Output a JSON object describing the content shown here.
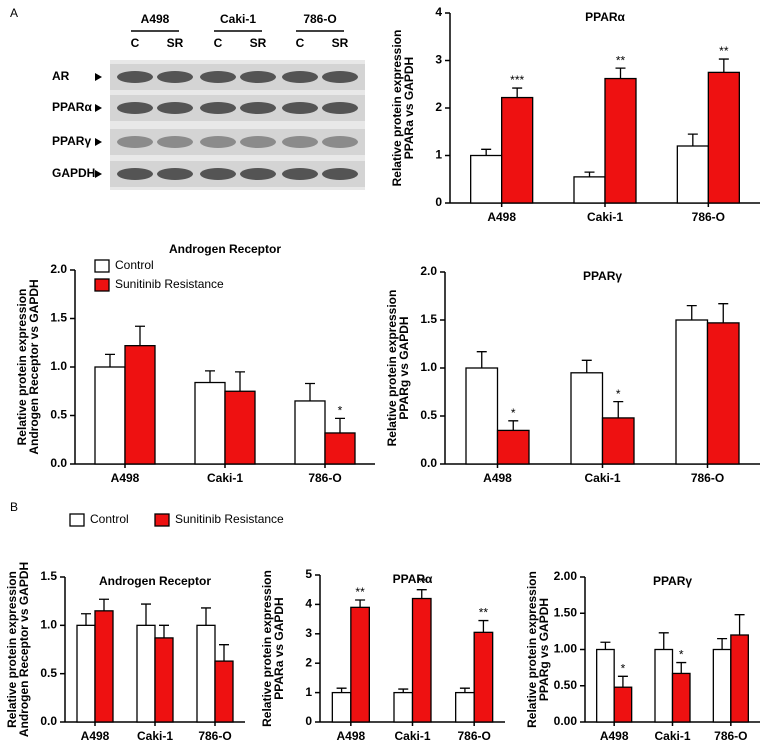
{
  "panels": [
    "A",
    "B"
  ],
  "blot": {
    "cell_lines": [
      "A498",
      "Caki-1",
      "786-O"
    ],
    "lanes": [
      "C",
      "SR",
      "C",
      "SR",
      "C",
      "SR"
    ],
    "proteins": [
      "AR",
      "PPARα",
      "PPARγ",
      "GAPDH"
    ]
  },
  "chart_data": [
    {
      "type": "bar",
      "title": "PPARα",
      "ylabel": [
        "Relative protein expression",
        "PPARa vs GAPDH"
      ],
      "categories": [
        "A498",
        "Caki-1",
        "786-O"
      ],
      "ylim": [
        0,
        4
      ],
      "yticks": [
        0,
        1,
        2,
        3,
        4
      ],
      "series": [
        {
          "name": "Control",
          "color": "#ffffff",
          "values": [
            1.0,
            0.55,
            1.2
          ],
          "errors": [
            0.13,
            0.1,
            0.25
          ]
        },
        {
          "name": "Sunitinib Resistance",
          "color": "#ee1111",
          "values": [
            2.22,
            2.62,
            2.75
          ],
          "errors": [
            0.2,
            0.22,
            0.28
          ],
          "annotations": [
            "***",
            "**",
            "**"
          ]
        }
      ]
    },
    {
      "type": "bar",
      "title": "Androgen Receptor",
      "ylabel": [
        "Relative protein expression",
        "Androgen Receptor vs GAPDH"
      ],
      "categories": [
        "A498",
        "Caki-1",
        "786-O"
      ],
      "ylim": [
        0,
        2
      ],
      "yticks": [
        {
          "value": 0,
          "label": "0.0"
        },
        {
          "value": 0.5,
          "label": "0.5"
        },
        {
          "value": 1,
          "label": "1.0"
        },
        {
          "value": 1.5,
          "label": "1.5"
        },
        {
          "value": 2,
          "label": "2.0"
        }
      ],
      "legend": "upper left",
      "series": [
        {
          "name": "Control",
          "color": "#ffffff",
          "values": [
            1.0,
            0.84,
            0.65
          ],
          "errors": [
            0.13,
            0.12,
            0.18
          ]
        },
        {
          "name": "Sunitinib Resistance",
          "color": "#ee1111",
          "values": [
            1.22,
            0.75,
            0.32
          ],
          "errors": [
            0.2,
            0.2,
            0.15
          ],
          "annotations": [
            null,
            null,
            "*"
          ]
        }
      ]
    },
    {
      "type": "bar",
      "title": "PPARγ",
      "ylabel": [
        "Relative protein expression",
        "PPARg vs GAPDH"
      ],
      "categories": [
        "A498",
        "Caki-1",
        "786-O"
      ],
      "ylim": [
        0,
        2
      ],
      "yticks": [
        {
          "value": 0,
          "label": "0.0"
        },
        {
          "value": 0.5,
          "label": "0.5"
        },
        {
          "value": 1,
          "label": "1.0"
        },
        {
          "value": 1.5,
          "label": "1.5"
        },
        {
          "value": 2,
          "label": "2.0"
        }
      ],
      "series": [
        {
          "name": "Control",
          "color": "#ffffff",
          "values": [
            1.0,
            0.95,
            1.5
          ],
          "errors": [
            0.17,
            0.13,
            0.15
          ]
        },
        {
          "name": "Sunitinib Resistance",
          "color": "#ee1111",
          "values": [
            0.35,
            0.48,
            1.47
          ],
          "errors": [
            0.1,
            0.17,
            0.2
          ],
          "annotations": [
            "*",
            "*",
            null
          ]
        }
      ]
    },
    {
      "type": "bar",
      "title": "Androgen Receptor",
      "ylabel": [
        "Relative protein expression",
        "Androgen Receptor vs GAPDH"
      ],
      "categories": [
        "A498",
        "Caki-1",
        "786-O"
      ],
      "ylim": [
        0,
        1.5
      ],
      "yticks": [
        {
          "value": 0,
          "label": "0.0"
        },
        {
          "value": 0.5,
          "label": "0.5"
        },
        {
          "value": 1,
          "label": "1.0"
        },
        {
          "value": 1.5,
          "label": "1.5"
        }
      ],
      "legend": "above",
      "series": [
        {
          "name": "Control",
          "color": "#ffffff",
          "values": [
            1.0,
            1.0,
            1.0
          ],
          "errors": [
            0.12,
            0.22,
            0.18
          ]
        },
        {
          "name": "Sunitinib Resistance",
          "color": "#ee1111",
          "values": [
            1.15,
            0.87,
            0.63
          ],
          "errors": [
            0.12,
            0.13,
            0.17
          ]
        }
      ]
    },
    {
      "type": "bar",
      "title": "PPARα",
      "ylabel": [
        "Relative protein expression",
        "PPARa vs GAPDH"
      ],
      "categories": [
        "A498",
        "Caki-1",
        "786-O"
      ],
      "ylim": [
        0,
        5
      ],
      "yticks": [
        0,
        1,
        2,
        3,
        4,
        5
      ],
      "series": [
        {
          "name": "Control",
          "color": "#ffffff",
          "values": [
            1.0,
            1.0,
            1.0
          ],
          "errors": [
            0.15,
            0.12,
            0.15
          ]
        },
        {
          "name": "Sunitinib Resistance",
          "color": "#ee1111",
          "values": [
            3.9,
            4.2,
            3.05
          ],
          "errors": [
            0.25,
            0.3,
            0.4
          ],
          "annotations": [
            "**",
            "**",
            "**"
          ]
        }
      ]
    },
    {
      "type": "bar",
      "title": "PPARγ",
      "ylabel": [
        "Relative protein expression",
        "PPARg vs GAPDH"
      ],
      "categories": [
        "A498",
        "Caki-1",
        "786-O"
      ],
      "ylim": [
        0,
        2
      ],
      "yticks": [
        {
          "value": 0,
          "label": "0.00"
        },
        {
          "value": 0.5,
          "label": "0.50"
        },
        {
          "value": 1,
          "label": "1.00"
        },
        {
          "value": 1.5,
          "label": "1.50"
        },
        {
          "value": 2,
          "label": "2.00"
        }
      ],
      "series": [
        {
          "name": "Control",
          "color": "#ffffff",
          "values": [
            1.0,
            1.0,
            1.0
          ],
          "errors": [
            0.1,
            0.23,
            0.15
          ]
        },
        {
          "name": "Sunitinib Resistance",
          "color": "#ee1111",
          "values": [
            0.48,
            0.67,
            1.2
          ],
          "errors": [
            0.15,
            0.15,
            0.28
          ],
          "annotations": [
            "*",
            "*",
            null
          ]
        }
      ]
    }
  ]
}
